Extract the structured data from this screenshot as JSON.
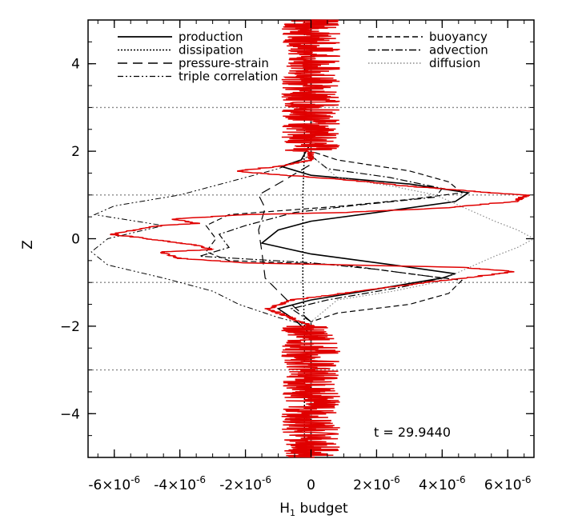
{
  "chart_data": {
    "type": "line",
    "xlabel": "H",
    "xlabel_subscript": "1",
    "xlabel_suffix": " budget",
    "ylabel": "Z",
    "xlim": [
      -6.8e-06,
      6.8e-06
    ],
    "ylim": [
      -5,
      5
    ],
    "x_ticks": [
      {
        "value": -6e-06,
        "mantissa": "-6×10",
        "exp": "-6"
      },
      {
        "value": -4e-06,
        "mantissa": "-4×10",
        "exp": "-6"
      },
      {
        "value": -2e-06,
        "mantissa": "-2×10",
        "exp": "-6"
      },
      {
        "value": 0,
        "mantissa": "0",
        "exp": ""
      },
      {
        "value": 2e-06,
        "mantissa": "2×10",
        "exp": "-6"
      },
      {
        "value": 4e-06,
        "mantissa": "4×10",
        "exp": "-6"
      },
      {
        "value": 6e-06,
        "mantissa": "6×10",
        "exp": "-6"
      }
    ],
    "y_ticks": [
      {
        "value": -4,
        "label": "−4"
      },
      {
        "value": -2,
        "label": "−2"
      },
      {
        "value": 0,
        "label": "0"
      },
      {
        "value": 2,
        "label": "2"
      },
      {
        "value": 4,
        "label": "4"
      }
    ],
    "reference_lines_y": [
      -3,
      -1,
      1,
      3
    ],
    "annotation": "t = 29.9440",
    "legend_left": [
      "production",
      "dissipation",
      "pressure-strain",
      "triple correlation"
    ],
    "legend_right": [
      "buoyancy",
      "advection",
      "diffusion"
    ],
    "colors": {
      "total": "#e00000",
      "lines": "#000000",
      "grid": "#888888"
    },
    "series": [
      {
        "name": "production",
        "dash": "",
        "width": 1.6,
        "color": "#000000",
        "points": [
          [
            0,
            -5
          ],
          [
            0,
            -2.2
          ],
          [
            -5e-07,
            -1.85
          ],
          [
            -1e-06,
            -1.6
          ],
          [
            0,
            -1.4
          ],
          [
            2e-06,
            -1.15
          ],
          [
            4e-06,
            -0.9
          ],
          [
            4.4e-06,
            -0.8
          ],
          [
            2.5e-06,
            -0.6
          ],
          [
            0,
            -0.35
          ],
          [
            -1.5e-06,
            -0.1
          ],
          [
            -1e-06,
            0.2
          ],
          [
            0,
            0.4
          ],
          [
            2e-06,
            0.6
          ],
          [
            4.4e-06,
            0.85
          ],
          [
            4.8e-06,
            1.05
          ],
          [
            3e-06,
            1.25
          ],
          [
            0,
            1.45
          ],
          [
            -9e-07,
            1.65
          ],
          [
            -3e-07,
            1.8
          ],
          [
            0,
            2.2
          ],
          [
            0,
            5
          ]
        ]
      },
      {
        "name": "dissipation",
        "dash": "2,2",
        "width": 1.4,
        "color": "#000000",
        "points": [
          [
            -2e-07,
            -5
          ],
          [
            -2e-07,
            -2
          ],
          [
            -2.5e-07,
            -1
          ],
          [
            -2.5e-07,
            0
          ],
          [
            -2.5e-07,
            1
          ],
          [
            -2e-07,
            2
          ],
          [
            -2e-07,
            5
          ]
        ]
      },
      {
        "name": "pressure-strain",
        "dash": "12,7",
        "width": 1.2,
        "color": "#000000",
        "points": [
          [
            0,
            -5
          ],
          [
            0,
            -1.9
          ],
          [
            -6e-07,
            -1.5
          ],
          [
            -1.4e-06,
            -0.9
          ],
          [
            -1.5e-06,
            -0.3
          ],
          [
            -1.6e-06,
            0.2
          ],
          [
            -1.4e-06,
            0.7
          ],
          [
            -1.6e-06,
            1.0
          ],
          [
            -9e-07,
            1.3
          ],
          [
            0,
            1.7
          ],
          [
            0,
            5
          ]
        ]
      },
      {
        "name": "triple correlation",
        "dash": "7,3,2,3,2,3",
        "width": 1.0,
        "color": "#000000",
        "points": [
          [
            0,
            -5
          ],
          [
            0,
            -2
          ],
          [
            -1e-06,
            -1.8
          ],
          [
            -2.2e-06,
            -1.5
          ],
          [
            -3e-06,
            -1.2
          ],
          [
            -4.5e-06,
            -0.9
          ],
          [
            -6.2e-06,
            -0.6
          ],
          [
            -6.7e-06,
            -0.3
          ],
          [
            -6.2e-06,
            0
          ],
          [
            -4.5e-06,
            0.3
          ],
          [
            -6.6e-06,
            0.55
          ],
          [
            -6e-06,
            0.75
          ],
          [
            -4e-06,
            1.0
          ],
          [
            -2.5e-06,
            1.3
          ],
          [
            -1e-06,
            1.6
          ],
          [
            0,
            1.9
          ],
          [
            0,
            5
          ]
        ]
      },
      {
        "name": "buoyancy",
        "dash": "7,4",
        "width": 1.2,
        "color": "#000000",
        "points": [
          [
            0,
            -5
          ],
          [
            0,
            -1.9
          ],
          [
            8e-07,
            -1.7
          ],
          [
            3e-06,
            -1.5
          ],
          [
            4.2e-06,
            -1.25
          ],
          [
            4.6e-06,
            -0.95
          ],
          [
            3e-06,
            -0.8
          ],
          [
            1e-06,
            -0.6
          ],
          [
            -2.5e-06,
            -0.5
          ],
          [
            -3.2e-06,
            -0.3
          ],
          [
            -2.9e-06,
            0
          ],
          [
            -3.2e-06,
            0.3
          ],
          [
            -2.5e-06,
            0.55
          ],
          [
            1e-06,
            0.75
          ],
          [
            3e-06,
            0.9
          ],
          [
            4.6e-06,
            1.05
          ],
          [
            4.2e-06,
            1.3
          ],
          [
            3e-06,
            1.55
          ],
          [
            8e-07,
            1.8
          ],
          [
            0,
            2.0
          ],
          [
            0,
            5
          ]
        ]
      },
      {
        "name": "advection",
        "dash": "9,3,2,3",
        "width": 1.2,
        "color": "#000000",
        "points": [
          [
            0,
            -5
          ],
          [
            0,
            -1.9
          ],
          [
            -6e-07,
            -1.6
          ],
          [
            5e-07,
            -1.4
          ],
          [
            2.8e-06,
            -1.1
          ],
          [
            4e-06,
            -0.9
          ],
          [
            2e-06,
            -0.7
          ],
          [
            0,
            -0.55
          ],
          [
            -3.4e-06,
            -0.4
          ],
          [
            -2.5e-06,
            -0.2
          ],
          [
            -2.8e-06,
            0.1
          ],
          [
            -2e-06,
            0.3
          ],
          [
            -5e-07,
            0.6
          ],
          [
            1.2e-06,
            0.75
          ],
          [
            3.8e-06,
            0.95
          ],
          [
            4e-06,
            1.15
          ],
          [
            2.4e-06,
            1.4
          ],
          [
            5e-07,
            1.6
          ],
          [
            0,
            1.9
          ],
          [
            0,
            5
          ]
        ]
      },
      {
        "name": "diffusion",
        "dash": "1.5,2.5",
        "width": 1.2,
        "color": "#888888",
        "points": [
          [
            0,
            -5
          ],
          [
            0,
            -1.9
          ],
          [
            8e-07,
            -1.4
          ],
          [
            2.5e-06,
            -1.2
          ],
          [
            3.8e-06,
            -1.0
          ],
          [
            5e-06,
            -0.6
          ],
          [
            5.6e-06,
            -0.4
          ],
          [
            6.3e-06,
            -0.2
          ],
          [
            6.8e-06,
            0
          ],
          [
            6.3e-06,
            0.2
          ],
          [
            5.6e-06,
            0.4
          ],
          [
            5e-06,
            0.6
          ],
          [
            3.8e-06,
            1.0
          ],
          [
            2.5e-06,
            1.2
          ],
          [
            8e-07,
            1.4
          ],
          [
            0,
            1.9
          ],
          [
            0,
            5
          ]
        ]
      },
      {
        "name": "",
        "dash": "",
        "width": 1.5,
        "color": "#e00000",
        "noisy": true,
        "points": [
          [
            0,
            -5
          ],
          [
            0,
            -2
          ],
          [
            -8e-07,
            -1.75
          ],
          [
            -1.3e-06,
            -1.6
          ],
          [
            -6e-07,
            -1.4
          ],
          [
            1.5e-06,
            -1.2
          ],
          [
            3.5e-06,
            -1.0
          ],
          [
            5.2e-06,
            -0.85
          ],
          [
            6.2e-06,
            -0.75
          ],
          [
            4.5e-06,
            -0.65
          ],
          [
            1e-06,
            -0.6
          ],
          [
            -2e-06,
            -0.55
          ],
          [
            -4e-06,
            -0.45
          ],
          [
            -4.6e-06,
            -0.3
          ],
          [
            -3e-06,
            -0.25
          ],
          [
            -3.5e-06,
            -0.15
          ],
          [
            -5.5e-06,
            0.05
          ],
          [
            -6.1e-06,
            0.1
          ],
          [
            -4.6e-06,
            0.3
          ],
          [
            -3.5e-06,
            0.35
          ],
          [
            -4.2e-06,
            0.45
          ],
          [
            -2e-06,
            0.55
          ],
          [
            1e-06,
            0.6
          ],
          [
            4e-06,
            0.7
          ],
          [
            6.2e-06,
            0.85
          ],
          [
            6.6e-06,
            1.0
          ],
          [
            5.5e-06,
            1.05
          ],
          [
            3e-06,
            1.2
          ],
          [
            1e-06,
            1.35
          ],
          [
            -1.6e-06,
            1.5
          ],
          [
            -2.3e-06,
            1.55
          ],
          [
            -1e-06,
            1.65
          ],
          [
            0,
            1.8
          ],
          [
            0,
            2.2
          ],
          [
            0,
            5
          ]
        ]
      }
    ]
  }
}
